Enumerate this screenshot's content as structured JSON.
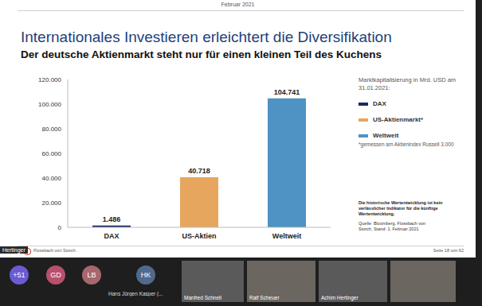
{
  "chart_data": {
    "type": "bar",
    "title": "Internationales Investieren erleichtert die Diversifikation",
    "subtitle": "Der deutsche Aktienmarkt steht nur für einen kleinen Teil des Kuchens",
    "categories": [
      "DAX",
      "US-Aktien",
      "Weltweit"
    ],
    "values": [
      1486,
      40718,
      104741
    ],
    "value_labels": [
      "1.486",
      "40.718",
      "104.741"
    ],
    "colors": [
      "#1a2b5f",
      "#e6a65d",
      "#4e93c3"
    ],
    "ylim": [
      0,
      120000
    ],
    "yticks": [
      0,
      {
        "value": 20000,
        "label": "20.000"
      },
      {
        "value": 40000,
        "label": "40.000"
      },
      {
        "value": 60000,
        "label": "60.000"
      },
      {
        "value": 80000,
        "label": "80.000"
      },
      {
        "value": 100000,
        "label": "100.000"
      },
      {
        "value": 120000,
        "label": "120.000"
      }
    ],
    "grid": false,
    "data_labels": true,
    "legend": "right",
    "legend_title": "Marktkapitalisierung in Mrd. USD am 31.01.2021:",
    "legend_labels": [
      "DAX",
      "US-Aktienmarkt*",
      "Weltweit"
    ],
    "annotations": [
      "*gemessen am Aktienindex Russell 3.000",
      "Die historische Wertentwicklung ist kein verlässlicher Indikator für die künftige Wertentwicklung.",
      "Quelle: Bloomberg, Flossbach von Storch, Stand: 1. Februar 2021"
    ]
  },
  "slide": {
    "header": "Februar 2021",
    "logo": "Flossbach von Storch",
    "page": "Seite 18 von 62"
  },
  "video_call": {
    "speaker_label": "Hertinger",
    "avatars": [
      "+51",
      "GD",
      "LB",
      "HK"
    ],
    "names": [
      "Hans Jürgen Kasper (...",
      "Manfred Schnell",
      "Ralf Scheuer",
      "Achim Hertinger"
    ]
  }
}
